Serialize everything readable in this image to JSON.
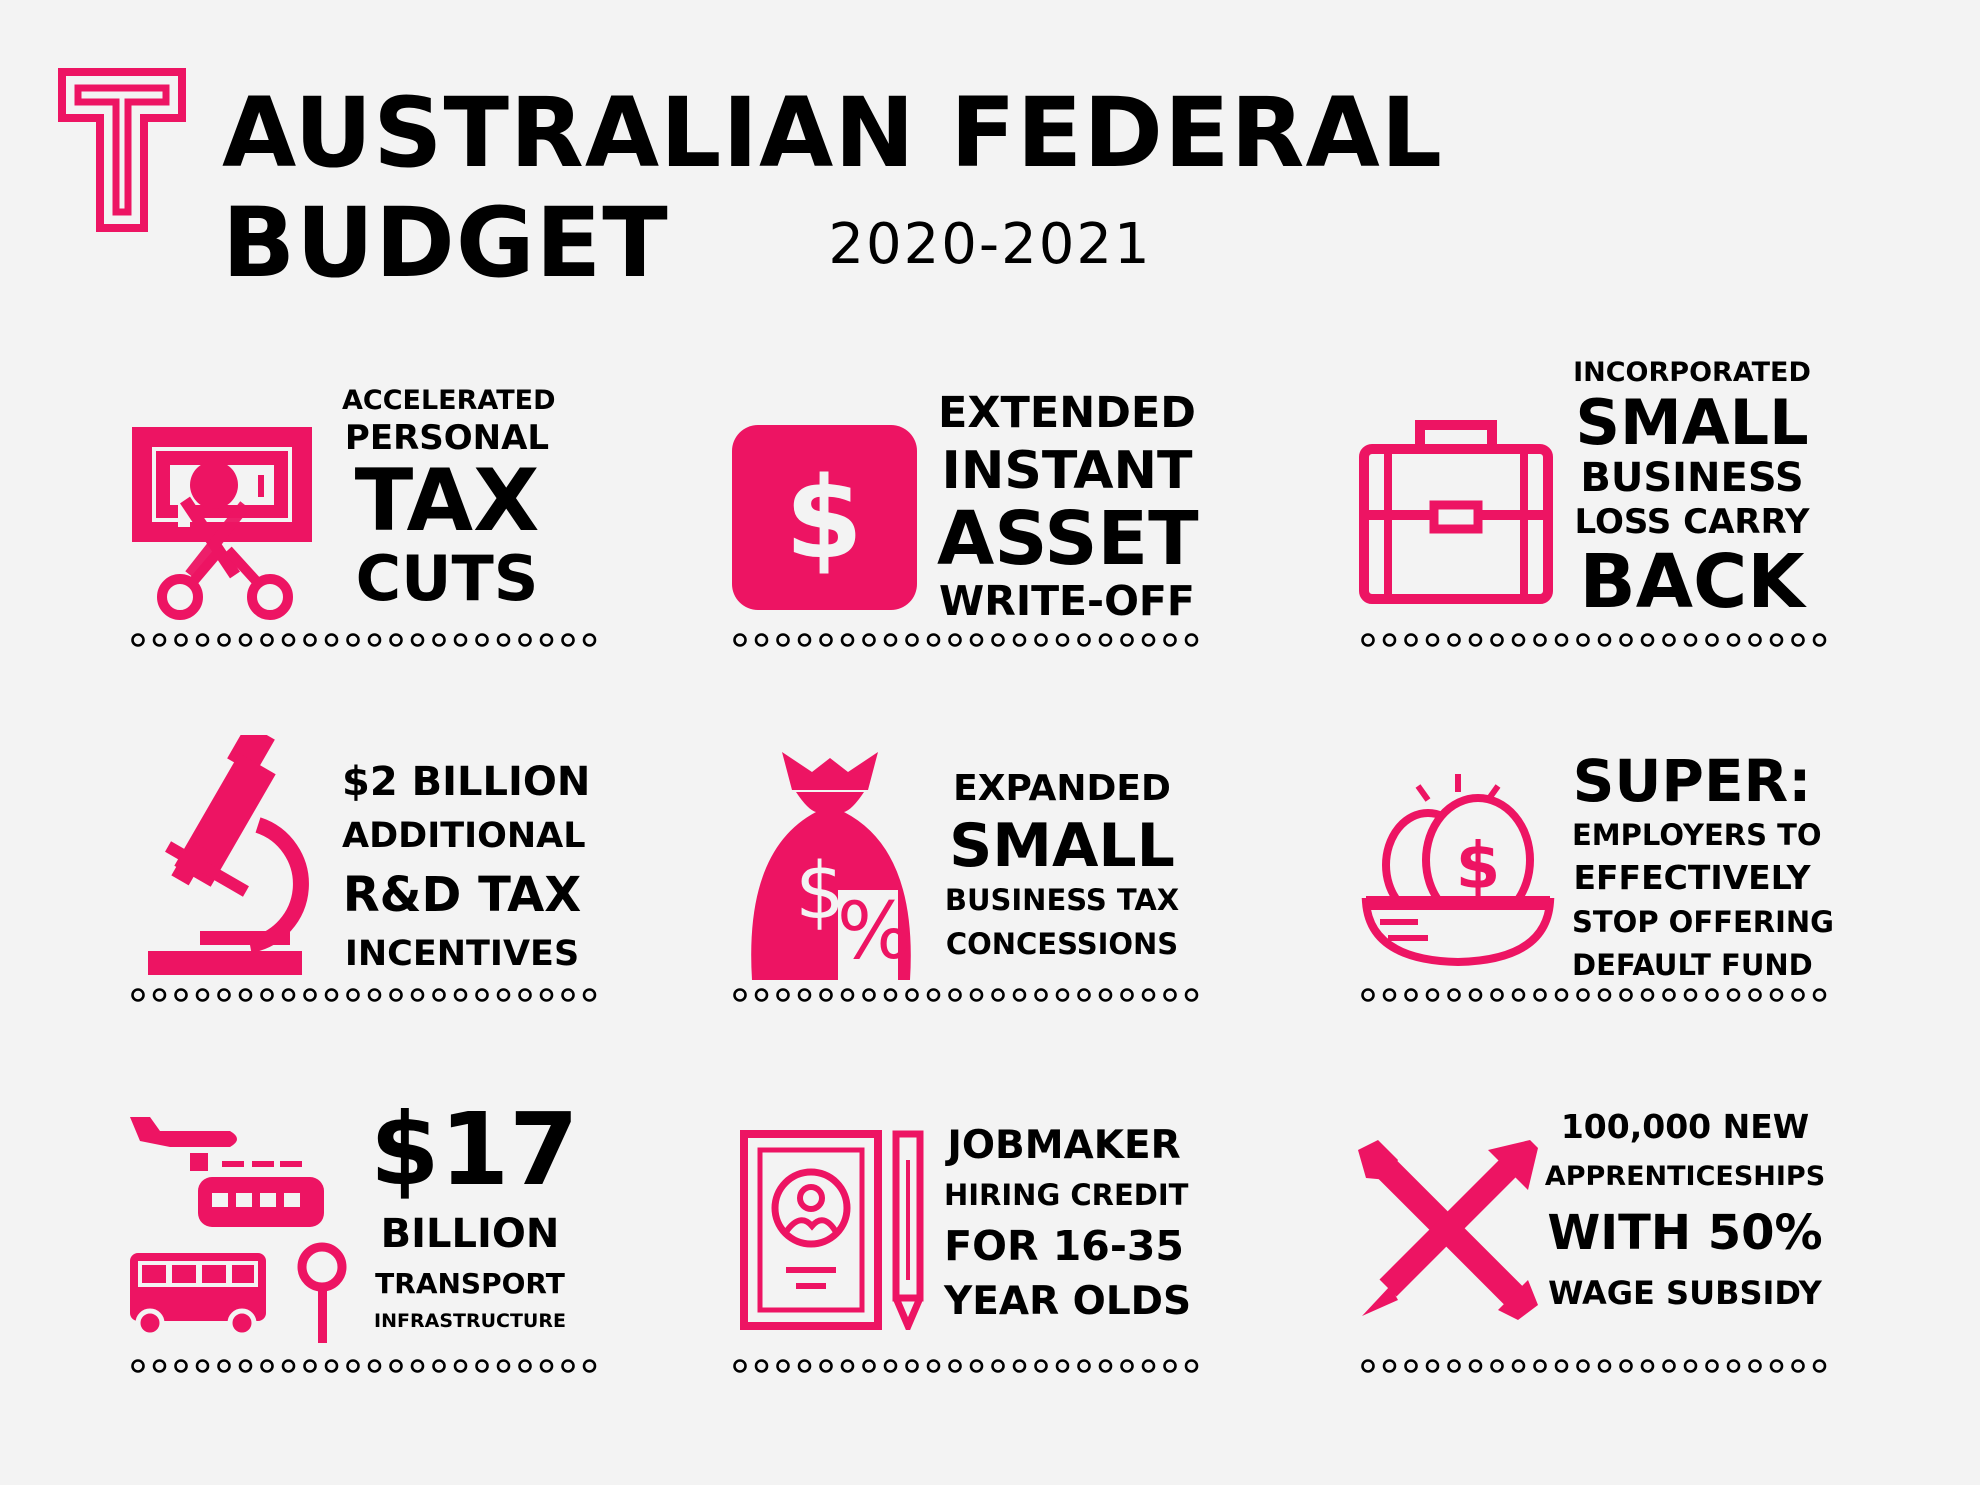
{
  "header": {
    "logo_letter": "T",
    "title": "AUSTRALIAN FEDERAL BUDGET",
    "subtitle": "2020-2021"
  },
  "colors": {
    "accent": "#ed1463",
    "text": "#000000",
    "background": "#f3f3f3"
  },
  "cards": [
    {
      "icon": "money-scissors-icon",
      "lines": [
        "ACCELERATED",
        "PERSONAL",
        "TAX",
        "CUTS"
      ]
    },
    {
      "icon": "dollar-square-icon",
      "glyph": "$",
      "lines": [
        "EXTENDED",
        "INSTANT",
        "ASSET",
        "WRITE-OFF"
      ]
    },
    {
      "icon": "briefcase-icon",
      "lines": [
        "INCORPORATED",
        "SMALL",
        "BUSINESS",
        "LOSS CARRY",
        "BACK"
      ]
    },
    {
      "icon": "microscope-icon",
      "lines": [
        "$2 BILLION",
        "ADDITIONAL",
        "R&D TAX",
        "INCENTIVES"
      ]
    },
    {
      "icon": "money-bag-percent-icon",
      "glyph": "$",
      "glyph2": "%",
      "lines": [
        "EXPANDED",
        "SMALL",
        "BUSINESS TAX",
        "CONCESSIONS"
      ]
    },
    {
      "icon": "nest-egg-icon",
      "glyph": "$",
      "lines": [
        "SUPER:",
        "EMPLOYERS TO",
        "EFFECTIVELY",
        "STOP OFFERING",
        "DEFAULT FUND"
      ]
    },
    {
      "icon": "transport-icon",
      "lines": [
        "$17",
        "BILLION",
        "TRANSPORT",
        "INFRASTRUCTURE"
      ]
    },
    {
      "icon": "id-document-pencil-icon",
      "lines": [
        "JOBMAKER",
        "HIRING CREDIT",
        "FOR 16-35",
        "YEAR OLDS"
      ]
    },
    {
      "icon": "wrench-pencil-icon",
      "lines": [
        "100,000 NEW",
        "APPRENTICESHIPS",
        "WITH 50%",
        "WAGE SUBSIDY"
      ]
    }
  ]
}
